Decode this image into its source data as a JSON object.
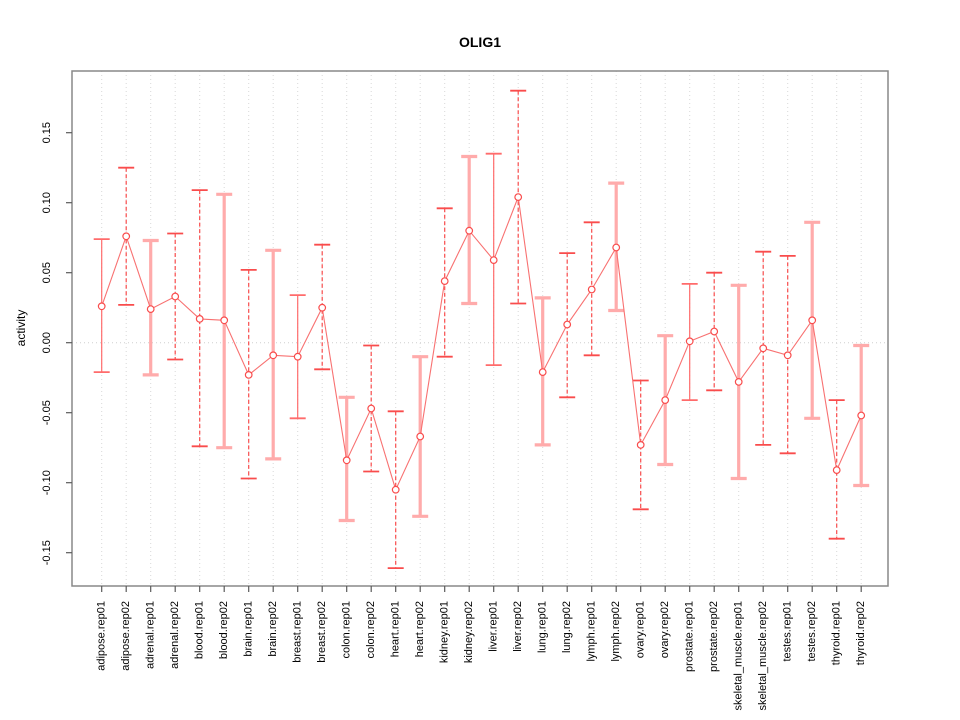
{
  "page": {
    "background": "#ffffff"
  },
  "chart_data": {
    "type": "line",
    "subtype": "point-estimates-with-error-bars",
    "title": "OLIG1",
    "xlabel": "",
    "ylabel": "activity",
    "ylim": [
      -0.174,
      0.194
    ],
    "yticks": [
      0.15,
      0.1,
      0.05,
      0.0,
      -0.05,
      -0.1,
      -0.15
    ],
    "grid": "vertical-dotted-per-category-plus-dotted-zero-line",
    "legend": "none",
    "categories": [
      "adipose.rep01",
      "adipose.rep02",
      "adrenal.rep01",
      "adrenal.rep02",
      "blood.rep01",
      "blood.rep02",
      "brain.rep01",
      "brain.rep02",
      "breast.rep01",
      "breast.rep02",
      "colon.rep01",
      "colon.rep02",
      "heart.rep01",
      "heart.rep02",
      "kidney.rep01",
      "kidney.rep02",
      "liver.rep01",
      "liver.rep02",
      "lung.rep01",
      "lung.rep02",
      "lymph.rep01",
      "lymph.rep02",
      "ovary.rep01",
      "ovary.rep02",
      "prostate.rep01",
      "prostate.rep02",
      "skeletal_muscle.rep01",
      "skeletal_muscle.rep02",
      "testes.rep01",
      "testes.rep02",
      "thyroid.rep01",
      "thyroid.rep02"
    ],
    "series": [
      {
        "name": "activity",
        "values": [
          0.026,
          0.076,
          0.024,
          0.033,
          0.017,
          0.016,
          -0.023,
          -0.009,
          -0.01,
          0.025,
          -0.084,
          -0.047,
          -0.105,
          -0.067,
          0.044,
          0.08,
          0.059,
          0.104,
          -0.021,
          0.013,
          0.038,
          0.068,
          -0.073,
          -0.041,
          0.001,
          0.008,
          -0.028,
          -0.004,
          -0.009,
          0.016,
          -0.091,
          -0.052
        ],
        "lower": [
          -0.021,
          0.027,
          -0.023,
          -0.012,
          -0.074,
          -0.075,
          -0.097,
          -0.083,
          -0.054,
          -0.019,
          -0.127,
          -0.092,
          -0.161,
          -0.124,
          -0.01,
          0.028,
          -0.016,
          0.028,
          -0.073,
          -0.039,
          -0.009,
          0.023,
          -0.119,
          -0.087,
          -0.041,
          -0.034,
          -0.097,
          -0.073,
          -0.079,
          -0.054,
          -0.14,
          -0.102
        ],
        "upper": [
          0.074,
          0.125,
          0.073,
          0.078,
          0.109,
          0.106,
          0.052,
          0.066,
          0.034,
          0.07,
          -0.039,
          -0.002,
          -0.049,
          -0.01,
          0.096,
          0.133,
          0.135,
          0.18,
          0.032,
          0.064,
          0.086,
          0.114,
          -0.027,
          0.005,
          0.042,
          0.05,
          0.041,
          0.065,
          0.062,
          0.086,
          -0.041,
          -0.002
        ]
      }
    ],
    "bar_styles": [
      "solid",
      "dashed",
      "thick",
      "dashed",
      "dashed",
      "thick",
      "dashed",
      "thick",
      "solid",
      "dashed",
      "thick",
      "dashed",
      "dashed",
      "thick",
      "dashed",
      "thick",
      "solid",
      "dashed",
      "thick",
      "dashed",
      "dashed",
      "thick",
      "dashed",
      "thick",
      "solid",
      "dashed",
      "thick",
      "dashed",
      "dashed",
      "thick",
      "dashed",
      "thick"
    ],
    "colors": {
      "point_stroke": "#f94c4c",
      "series_line": "#f87171",
      "errorbar_solid": "#ff6b6b",
      "errorbar_dashed": "#f94c4c",
      "errorbar_thick": "#ffabab",
      "gridline": "#d8d8d8",
      "zero_line": "#cfcfcf",
      "frame": "#898989",
      "tick": "#5a5a5a",
      "text": "#000000",
      "background": "#ffffff"
    }
  }
}
